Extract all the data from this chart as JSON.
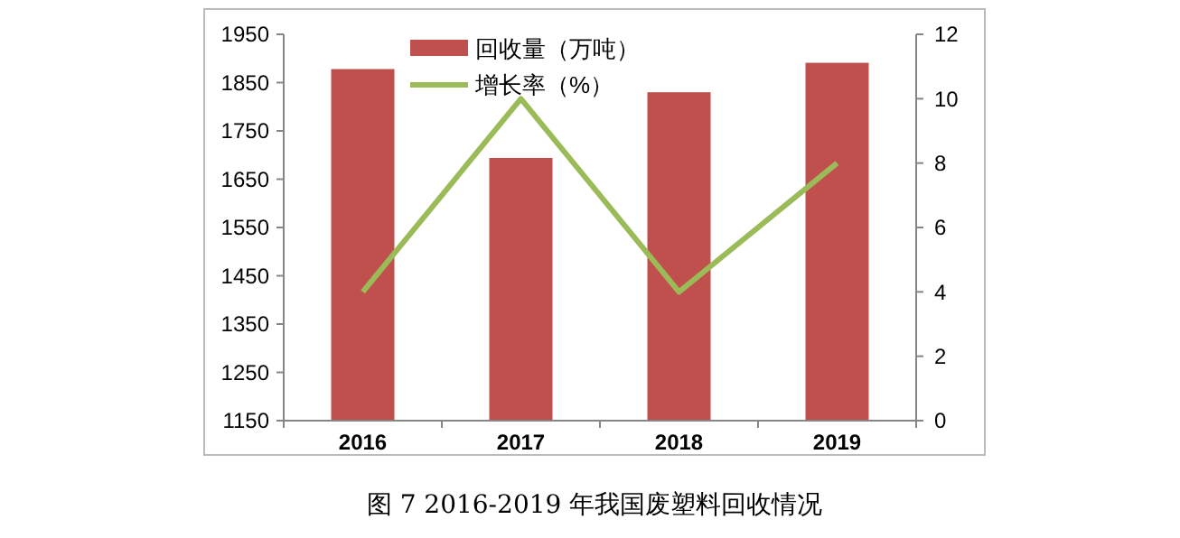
{
  "chart_data": {
    "type": "bar",
    "title": "图 7  2016-2019 年我国废塑料回收情况",
    "categories": [
      "2016",
      "2017",
      "2018",
      "2019"
    ],
    "series": [
      {
        "name": "回收量（万吨）",
        "color": "#c0504d",
        "values": [
          1878,
          1694,
          1830,
          1891
        ]
      },
      {
        "name": "增长率（%）",
        "type": "line",
        "axis": "y2",
        "color": "#9bbb59",
        "values": [
          4,
          10,
          4,
          8
        ]
      }
    ],
    "ylim": [
      1150,
      1950
    ],
    "yticks": [
      1150,
      1250,
      1350,
      1450,
      1550,
      1650,
      1750,
      1850,
      1950
    ],
    "y2lim": [
      0,
      12
    ],
    "y2ticks": [
      0,
      2,
      4,
      6,
      8,
      10,
      12
    ],
    "grid": false,
    "legend": "top left",
    "marker": "none"
  }
}
